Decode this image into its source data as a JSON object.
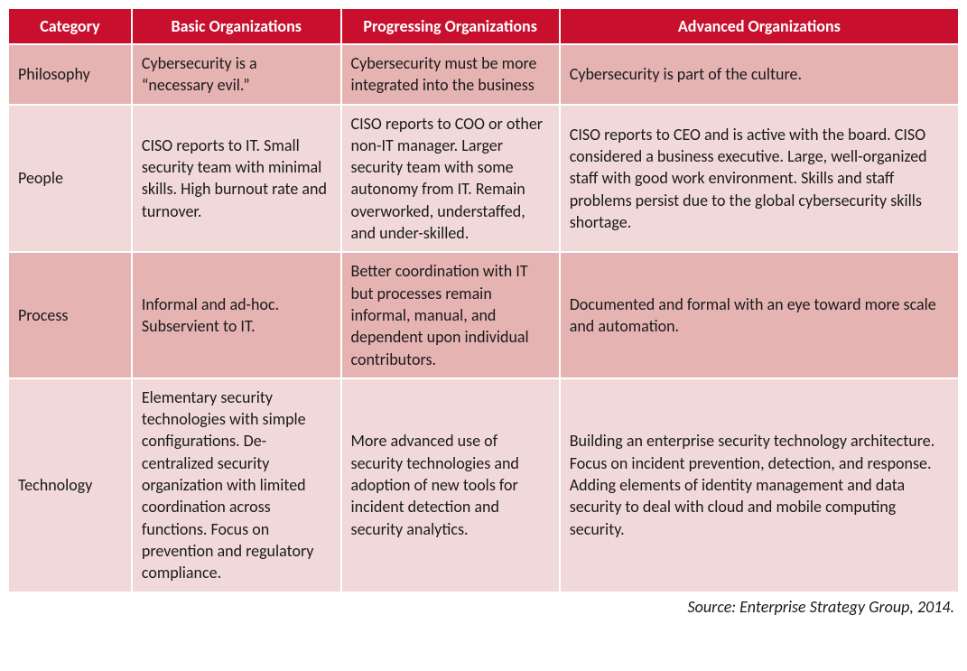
{
  "table": {
    "header_bg": "#c8102e",
    "header_fg": "#ffffff",
    "row_dark_bg": "#e6b3b3",
    "row_light_bg": "#f2d9d9",
    "border_color": "#ffffff",
    "text_color": "#1a1a1a",
    "font_family": "Calibri",
    "header_fontsize": 18,
    "cell_fontsize": 18,
    "columns": [
      {
        "label": "Category",
        "width_pct": 13
      },
      {
        "label": "Basic Organizations",
        "width_pct": 22
      },
      {
        "label": "Progressing Organizations",
        "width_pct": 23
      },
      {
        "label": "Advanced Organizations",
        "width_pct": 42
      }
    ],
    "rows": [
      {
        "shade": "dark",
        "category": "Philosophy",
        "basic": "Cybersecurity is a “necessary evil.”",
        "progressing": "Cybersecurity must be more integrated into the business",
        "advanced": "Cybersecurity is part of the culture."
      },
      {
        "shade": "light",
        "category": "People",
        "basic": "CISO reports to IT. Small security team with minimal skills. High burnout rate and turnover.",
        "progressing": "CISO reports to COO or other non-IT manager. Larger security team with some autonomy from IT. Remain overworked, understaffed, and under-skilled.",
        "advanced": "CISO reports to CEO and is active with the board. CISO considered a business executive. Large, well-organized staff with good work environment. Skills and staff problems persist due to the global cybersecurity skills shortage."
      },
      {
        "shade": "dark",
        "category": "Process",
        "basic": "Informal and ad-hoc. Subservient to IT.",
        "progressing": "Better coordination with IT but processes remain informal, manual, and dependent upon individual contributors.",
        "advanced": "Documented and formal with an eye toward more scale and automation."
      },
      {
        "shade": "light",
        "category": "Technology",
        "basic": "Elementary security technologies with simple configurations. De-centralized security organization with limited coordination across functions. Focus on prevention and regulatory compliance.",
        "progressing": "More advanced use of security technologies and adoption of new tools for incident detection and security analytics.",
        "advanced": "Building an enterprise security technology architecture. Focus on incident prevention, detection, and response. Adding elements of identity management and data security to deal with cloud and mobile computing security."
      }
    ]
  },
  "source": "Source: Enterprise Strategy Group, 2014."
}
